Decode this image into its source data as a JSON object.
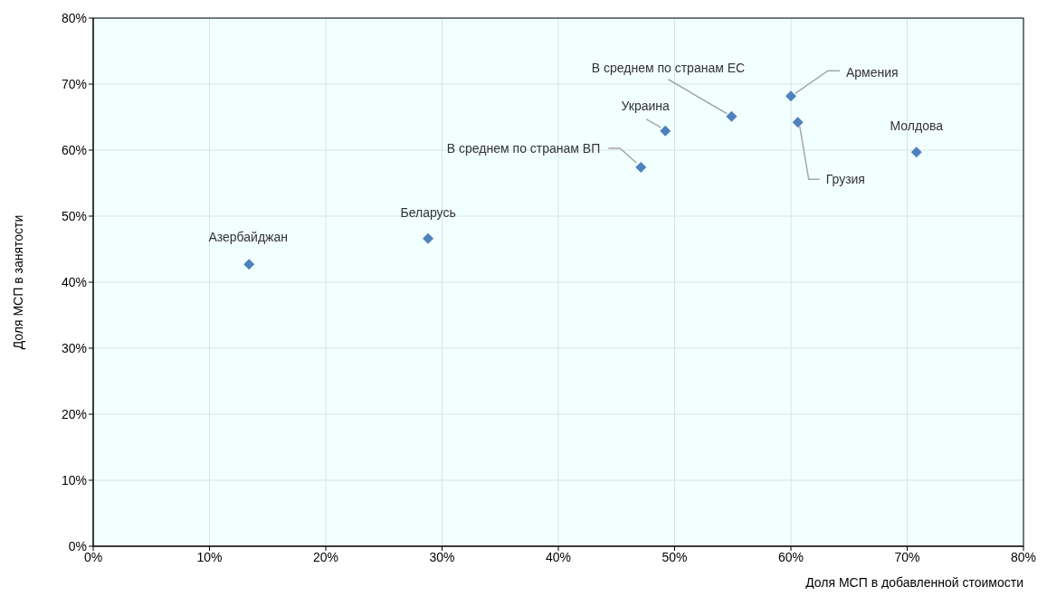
{
  "chart_data": {
    "type": "scatter",
    "xlabel": "Доля МСП в добавленной стоимости",
    "ylabel": "Доля МСП в занятости",
    "x": [
      13.4,
      28.8,
      47.1,
      49.2,
      54.9,
      60.0,
      60.6,
      70.8
    ],
    "values": [
      42.7,
      46.6,
      57.4,
      62.9,
      65.1,
      68.2,
      64.2,
      59.7
    ],
    "color": "#4f81bd",
    "marker": "diamond",
    "grid": true,
    "xlim": [
      0,
      80
    ],
    "ylim": [
      0,
      80
    ],
    "xticks": [
      {
        "value": 0,
        "label": "0%"
      },
      {
        "value": 10,
        "label": "10%"
      },
      {
        "value": 20,
        "label": "20%"
      },
      {
        "value": 30,
        "label": "30%"
      },
      {
        "value": 40,
        "label": "40%"
      },
      {
        "value": 50,
        "label": "50%"
      },
      {
        "value": 60,
        "label": "60%"
      },
      {
        "value": 70,
        "label": "70%"
      },
      {
        "value": 80,
        "label": "80%"
      }
    ],
    "yticks": [
      {
        "value": 0,
        "label": "0%"
      },
      {
        "value": 10,
        "label": "10%"
      },
      {
        "value": 20,
        "label": "20%"
      },
      {
        "value": 30,
        "label": "30%"
      },
      {
        "value": 40,
        "label": "40%"
      },
      {
        "value": 50,
        "label": "50%"
      },
      {
        "value": 60,
        "label": "60%"
      },
      {
        "value": 70,
        "label": "70%"
      },
      {
        "value": 80,
        "label": "80%"
      }
    ],
    "annotations": [
      {
        "text": "Азербайджан",
        "x": 13.4,
        "y": 42.7
      },
      {
        "text": "Беларусь",
        "x": 28.8,
        "y": 46.6
      },
      {
        "text": "В среднем по странам ВП",
        "x": 47.1,
        "y": 57.4
      },
      {
        "text": "Украина",
        "x": 49.2,
        "y": 62.9
      },
      {
        "text": "В среднем по странам ЕС",
        "x": 54.9,
        "y": 65.1
      },
      {
        "text": "Армения",
        "x": 60.0,
        "y": 68.2
      },
      {
        "text": "Грузия",
        "x": 60.6,
        "y": 64.2
      },
      {
        "text": "Молдова",
        "x": 70.8,
        "y": 59.7
      }
    ]
  }
}
